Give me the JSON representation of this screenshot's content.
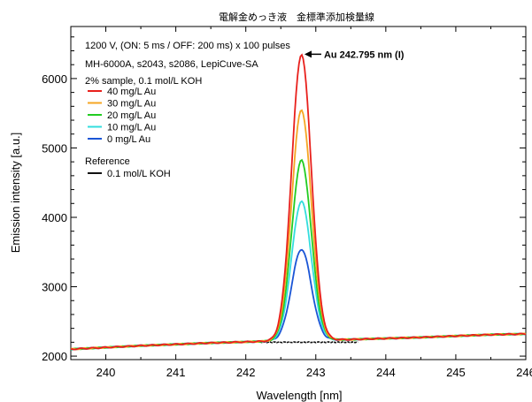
{
  "chart_data": {
    "type": "line",
    "title": "電解金めっき液　金標準添加検量線",
    "xlabel": "Wavelength [nm]",
    "ylabel": "Emission intensity [a.u.]",
    "xlim": [
      239.5,
      246.0
    ],
    "ylim": [
      1950,
      6750
    ],
    "x_ticks": [
      "240",
      "241",
      "242",
      "243",
      "244",
      "245",
      "246"
    ],
    "y_ticks": [
      "2000",
      "3000",
      "4000",
      "5000",
      "6000"
    ],
    "grid": false,
    "info_lines": [
      "1200 V, (ON: 5 ms / OFF: 200 ms) x 100 pulses",
      "MH-6000A, s2043, s2086, LepiCuve-SA"
    ],
    "legend_group_title": "2% sample, 0.1 mol/L KOH",
    "reference_group_title": "Reference",
    "legend_placement": "top-left",
    "annotation": {
      "text": "Au 242.795 nm (I)",
      "x": 242.8,
      "y": 6350
    },
    "peak_center": 242.795,
    "peak_sigma": 0.14,
    "baseline": [
      [
        239.5,
        2100
      ],
      [
        240.5,
        2150
      ],
      [
        241.5,
        2190
      ],
      [
        242.5,
        2220
      ],
      [
        243.5,
        2240
      ],
      [
        244.5,
        2270
      ],
      [
        245.5,
        2310
      ],
      [
        246.0,
        2320
      ]
    ],
    "series": [
      {
        "name": "40 mg/L Au",
        "color": "#e8201c",
        "peak": 6350
      },
      {
        "name": "30 mg/L Au",
        "color": "#f5a623",
        "peak": 5550
      },
      {
        "name": "20 mg/L Au",
        "color": "#22cc22",
        "peak": 4820
      },
      {
        "name": "10 mg/L Au",
        "color": "#33dddd",
        "peak": 4230
      },
      {
        "name": "0 mg/L Au",
        "color": "#1a55d6",
        "peak": 3540
      }
    ],
    "reference": {
      "name": "0.1 mol/L KOH",
      "color": "#111111",
      "level": 2200,
      "x_range": [
        242.2,
        243.6
      ]
    }
  }
}
